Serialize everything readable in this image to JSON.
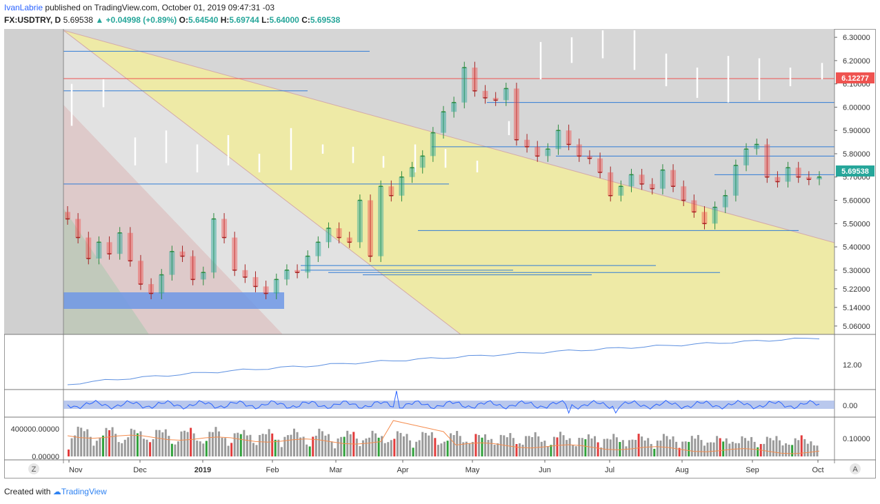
{
  "header": {
    "author": "IvanLabrie",
    "published_text": "published on TradingView.com, October 01, 2019 09:47:31 -03",
    "symbol": "FX:USDTRY, D",
    "price": "5.69538",
    "change_icon": "up-triangle-icon",
    "change": "+0.04998 (+0.89%)",
    "o_label": "O:",
    "o_value": "5.64540",
    "h_label": "H:",
    "h_value": "5.69744",
    "l_label": "L:",
    "l_value": "5.64000",
    "c_label": "C:",
    "c_value": "5.69538"
  },
  "footer": {
    "created_with": "Created with",
    "brand": "TradingView",
    "logo_icon": "tradingview-cloud-icon"
  },
  "axis_buttons": {
    "left": "Z",
    "right": "A"
  },
  "colors": {
    "up": "#26a69a",
    "down": "#ef5350",
    "line": "#2962ff",
    "yellow_zone": "#efe89a",
    "rsi_band": "#9bb1e6",
    "volume_ma": "#f58b4c"
  },
  "chart_data": {
    "type": "candlestick",
    "symbol": "FX:USDTRY",
    "interval": "D",
    "x_labels": [
      "Nov",
      "Dec",
      "2019",
      "Feb",
      "Mar",
      "Apr",
      "May",
      "Jun",
      "Jul",
      "Aug",
      "Sep",
      "Oct"
    ],
    "price_axis": {
      "ticks": [
        "6.30000",
        "6.20000",
        "6.10000",
        "6.00000",
        "5.90000",
        "5.80000",
        "5.70000",
        "5.60000",
        "5.50000",
        "5.40000",
        "5.30000",
        "5.22000",
        "5.14000",
        "5.06000"
      ],
      "last_price_label": "5.69538",
      "level_label": "6.12277",
      "ylim": [
        5.03,
        6.33
      ]
    },
    "levels": [
      6.12277,
      6.24,
      6.07,
      6.02,
      5.83,
      5.79,
      5.71,
      5.67,
      5.47,
      5.32,
      5.3,
      5.29,
      5.28
    ],
    "closes": [
      5.52,
      5.44,
      5.35,
      5.42,
      5.37,
      5.46,
      5.34,
      5.24,
      5.2,
      5.28,
      5.38,
      5.36,
      5.26,
      5.29,
      5.52,
      5.44,
      5.3,
      5.27,
      5.23,
      5.2,
      5.26,
      5.3,
      5.29,
      5.36,
      5.42,
      5.48,
      5.44,
      5.42,
      5.6,
      5.36,
      5.66,
      5.62,
      5.7,
      5.74,
      5.79,
      5.89,
      5.98,
      6.02,
      6.17,
      6.07,
      6.04,
      6.03,
      6.08,
      5.86,
      5.83,
      5.79,
      5.82,
      5.9,
      5.84,
      5.79,
      5.78,
      5.72,
      5.62,
      5.66,
      5.71,
      5.67,
      5.65,
      5.73,
      5.66,
      5.6,
      5.55,
      5.5,
      5.57,
      5.62,
      5.75,
      5.82,
      5.84,
      5.7,
      5.68,
      5.74,
      5.7,
      5.69,
      5.7
    ],
    "secondary_indicator": {
      "ticks": [
        "12.00"
      ]
    },
    "oscillator": {
      "ticks": [
        "0.00"
      ]
    },
    "volume": {
      "ticks": [
        "400000.00000",
        "0.00000"
      ],
      "right_ticks": [
        "0.10000"
      ]
    }
  }
}
